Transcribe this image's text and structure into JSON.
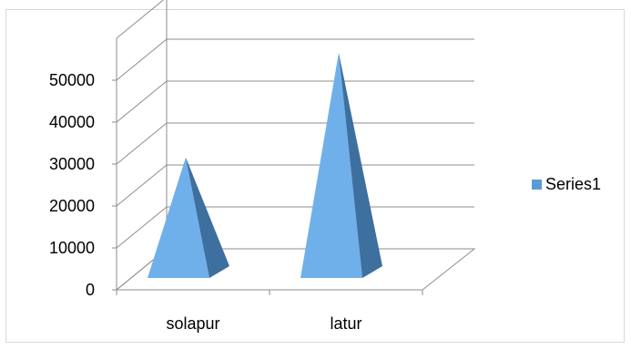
{
  "chart_data": {
    "type": "bar",
    "style": "3d-pyramid",
    "categories": [
      "solapur",
      "latur"
    ],
    "series": [
      {
        "name": "Series1",
        "values": [
          27000,
          52000
        ]
      }
    ],
    "yticks": [
      "0",
      "10000",
      "20000",
      "30000",
      "40000",
      "50000"
    ],
    "ylim": [
      0,
      60000
    ],
    "grid": true,
    "legend": "right",
    "colors": {
      "face_light": "#6fb0ea",
      "face_dark": "#3d6f9f",
      "legend_swatch": "#5b9bd5",
      "grid": "#8c8c8c",
      "wall": "#ffffff"
    }
  }
}
